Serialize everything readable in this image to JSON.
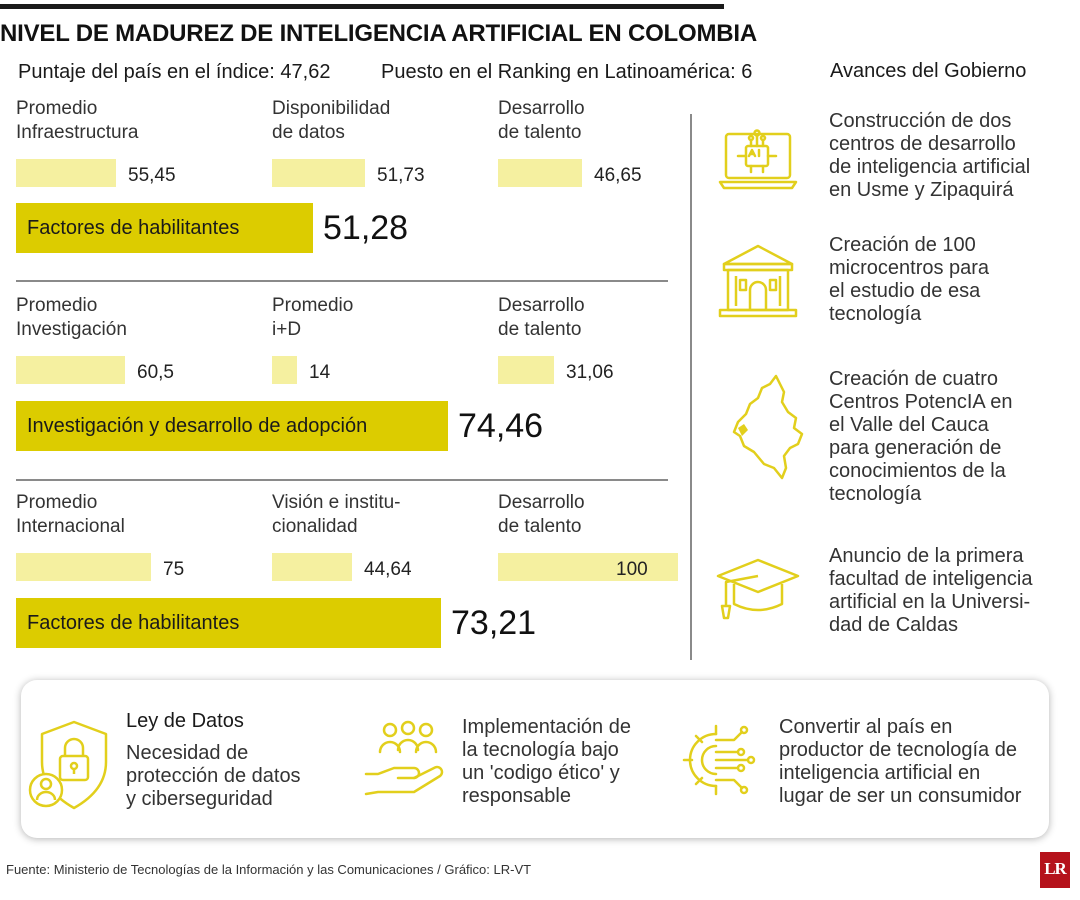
{
  "header": {
    "title": "NIVEL DE MADUREZ DE INTELIGENCIA ARTIFICIAL EN COLOMBIA",
    "score_text": "Puntaje del país en el índice: 47,62",
    "rank_text": "Puesto en el Ranking en Latinoamérica: 6"
  },
  "chart_data": {
    "type": "bar",
    "title": "NIVEL DE MADUREZ DE INTELIGENCIA ARTIFICIAL EN COLOMBIA",
    "xlim": [
      0,
      100
    ],
    "groups": [
      {
        "items": [
          {
            "label": "Promedio\nInfraestructura",
            "value": 55.45,
            "display": "55,45"
          },
          {
            "label": "Disponibilidad\nde datos",
            "value": 51.73,
            "display": "51,73"
          },
          {
            "label": "Desarrollo\nde talento",
            "value": 46.65,
            "display": "46,65"
          }
        ],
        "total": {
          "label": "Factores de habilitantes",
          "value": 51.28,
          "display": "51,28"
        }
      },
      {
        "items": [
          {
            "label": "Promedio\nInvestigación",
            "value": 60.5,
            "display": "60,5"
          },
          {
            "label": "Promedio\ni+D",
            "value": 14,
            "display": "14"
          },
          {
            "label": "Desarrollo\nde talento",
            "value": 31.06,
            "display": "31,06"
          }
        ],
        "total": {
          "label": "Investigación y desarrollo de adopción",
          "value": 74.46,
          "display": "74,46"
        }
      },
      {
        "items": [
          {
            "label": "Promedio\nInternacional",
            "value": 75,
            "display": "75"
          },
          {
            "label": "Visión e institu-\ncionalidad",
            "value": 44.64,
            "display": "44,64"
          },
          {
            "label": "Desarrollo\nde talento",
            "value": 100,
            "display": "100"
          }
        ],
        "total": {
          "label": "Factores de habilitantes",
          "value": 73.21,
          "display": "73,21"
        }
      }
    ]
  },
  "government": {
    "title": "Avances del Gobierno",
    "items": [
      {
        "icon": "ai-laptop-icon",
        "text": "Construcción de dos\ncentros de desarrollo\nde inteligencia artificial\nen Usme y Zipaquirá"
      },
      {
        "icon": "building-icon",
        "text": "Creación de 100\nmicrocentros para\nel estudio de esa\ntecnología"
      },
      {
        "icon": "colombia-map-icon",
        "text": "Creación de cuatro\nCentros PotencIA en\nel Valle del Cauca\npara generación de\nconocimientos de la\ntecnología"
      },
      {
        "icon": "graduation-cap-icon",
        "text": "Anuncio de la primera\nfacultad de inteligencia\nartificial en la Universi-\ndad de Caldas"
      }
    ]
  },
  "panel": {
    "law_title": "Ley de Datos",
    "law_text": "Necesidad de\nprotección de datos\ny ciberseguridad",
    "ethics_text": "Implementación de\nla tecnología bajo\nun 'codigo ético' y\nresponsable",
    "producer_text": "Convertir al país en\nproductor de tecnología de\ninteligencia artificial en\nlugar de ser un consumidor"
  },
  "colors": {
    "accent": "#dccc00",
    "light": "#f5f0a0",
    "icon": "#e2cf1c",
    "logo": "#b5121b"
  },
  "footer": {
    "source": "Fuente: Ministerio de Tecnologías de la Información y las Comunicaciones / Gráfico: LR-VT",
    "logo_text": "LR"
  }
}
